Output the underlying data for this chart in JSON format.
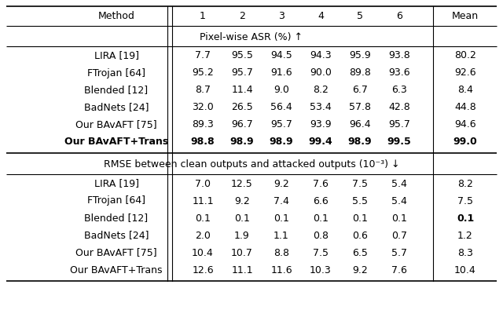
{
  "header": [
    "Method",
    "1",
    "2",
    "3",
    "4",
    "5",
    "6",
    "Mean"
  ],
  "section1_title": "Pixel-wise ASR (%) ↑",
  "section1_rows": [
    [
      "LIRA [19]",
      "7.7",
      "95.5",
      "94.5",
      "94.3",
      "95.9",
      "93.8",
      "80.2"
    ],
    [
      "FTrojan [64]",
      "95.2",
      "95.7",
      "91.6",
      "90.0",
      "89.8",
      "93.6",
      "92.6"
    ],
    [
      "Blended [12]",
      "8.7",
      "11.4",
      "9.0",
      "8.2",
      "6.7",
      "6.3",
      "8.4"
    ],
    [
      "BadNets [24]",
      "32.0",
      "26.5",
      "56.4",
      "53.4",
      "57.8",
      "42.8",
      "44.8"
    ],
    [
      "Our BAvAFT [75]",
      "89.3",
      "96.7",
      "95.7",
      "93.9",
      "96.4",
      "95.7",
      "94.6"
    ],
    [
      "Our BAvAFT+Trans",
      "98.8",
      "98.9",
      "98.9",
      "99.4",
      "98.9",
      "99.5",
      "99.0"
    ]
  ],
  "section1_bold_row": 5,
  "section2_title": "RMSE between clean outputs and attacked outputs (10⁻³) ↓",
  "section2_rows": [
    [
      "LIRA [19]",
      "7.0",
      "12.5",
      "9.2",
      "7.6",
      "7.5",
      "5.4",
      "8.2"
    ],
    [
      "FTrojan [64]",
      "11.1",
      "9.2",
      "7.4",
      "6.6",
      "5.5",
      "5.4",
      "7.5"
    ],
    [
      "Blended [12]",
      "0.1",
      "0.1",
      "0.1",
      "0.1",
      "0.1",
      "0.1",
      "0.1"
    ],
    [
      "BadNets [24]",
      "2.0",
      "1.9",
      "1.1",
      "0.8",
      "0.6",
      "0.7",
      "1.2"
    ],
    [
      "Our BAvAFT [75]",
      "10.4",
      "10.7",
      "8.8",
      "7.5",
      "6.5",
      "5.7",
      "8.3"
    ],
    [
      "Our BAvAFT+Trans",
      "12.6",
      "11.1",
      "11.6",
      "10.3",
      "9.2",
      "7.6",
      "10.4"
    ]
  ],
  "section2_bold_row": 2,
  "bg_color": "#ffffff",
  "text_color": "#000000",
  "font_size": 9.0
}
